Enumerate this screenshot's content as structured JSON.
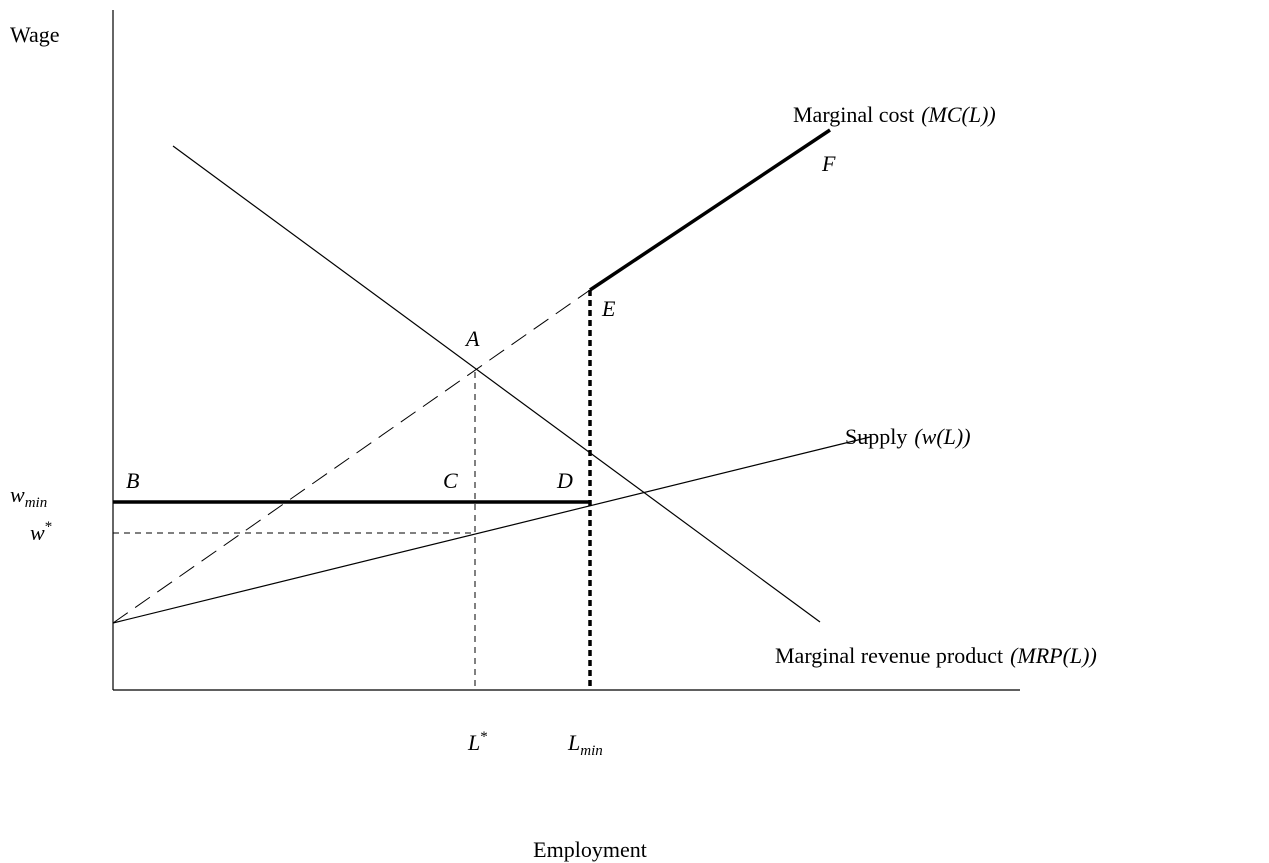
{
  "axes": {
    "y_label": "Wage",
    "x_label": "Employment"
  },
  "ticks": {
    "w_min": {
      "base": "w",
      "sub": "min"
    },
    "w_star": {
      "base": "w",
      "sup": "*"
    },
    "L_star": {
      "base": "L",
      "sup": "*"
    },
    "L_min": {
      "base": "L",
      "sub": "min"
    }
  },
  "curves": {
    "marginal_cost": {
      "text": "Marginal cost",
      "math": "(MC(L))"
    },
    "supply": {
      "text": "Supply",
      "math": "(w(L))"
    },
    "mrp": {
      "text": "Marginal revenue product",
      "math": "(MRP(L))"
    }
  },
  "points": [
    "A",
    "B",
    "C",
    "D",
    "E",
    "F"
  ]
}
